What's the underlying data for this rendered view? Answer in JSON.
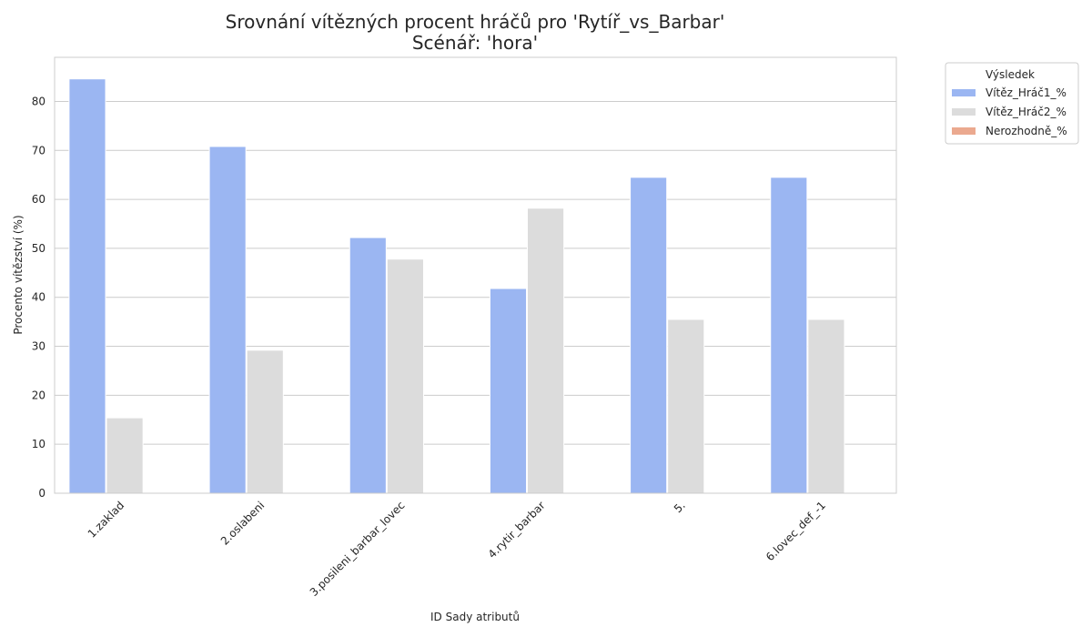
{
  "chart_data": {
    "type": "bar",
    "title_line1": "Srovnání vítězných procent hráčů pro 'Rytíř_vs_Barbar'",
    "title_line2": "Scénář: 'hora'",
    "xlabel": "ID Sady atributů",
    "ylabel": "Procento vítězství (%)",
    "categories": [
      "1.zaklad",
      "2.oslabeni",
      "3.posileni_barbar_lovec",
      "4.rytir_barbar",
      "5.",
      "6.lovec_def_-1"
    ],
    "ylim": [
      0,
      89
    ],
    "yticks": [
      0,
      10,
      20,
      30,
      40,
      50,
      60,
      70,
      80
    ],
    "grid": true,
    "legend": {
      "title": "Výsledek",
      "placement": "outside-top-right"
    },
    "series": [
      {
        "name": "Vítěz_Hráč1_%",
        "color": "#9bb6f2",
        "values": [
          84.6,
          70.8,
          52.2,
          41.8,
          64.5,
          64.5
        ]
      },
      {
        "name": "Vítěz_Hráč2_%",
        "color": "#dcdcdc",
        "values": [
          15.4,
          29.2,
          47.8,
          58.2,
          35.5,
          35.5
        ]
      },
      {
        "name": "Nerozhodně_%",
        "color": "#eba98f",
        "values": [
          0,
          0,
          0,
          0,
          0,
          0
        ]
      }
    ]
  }
}
